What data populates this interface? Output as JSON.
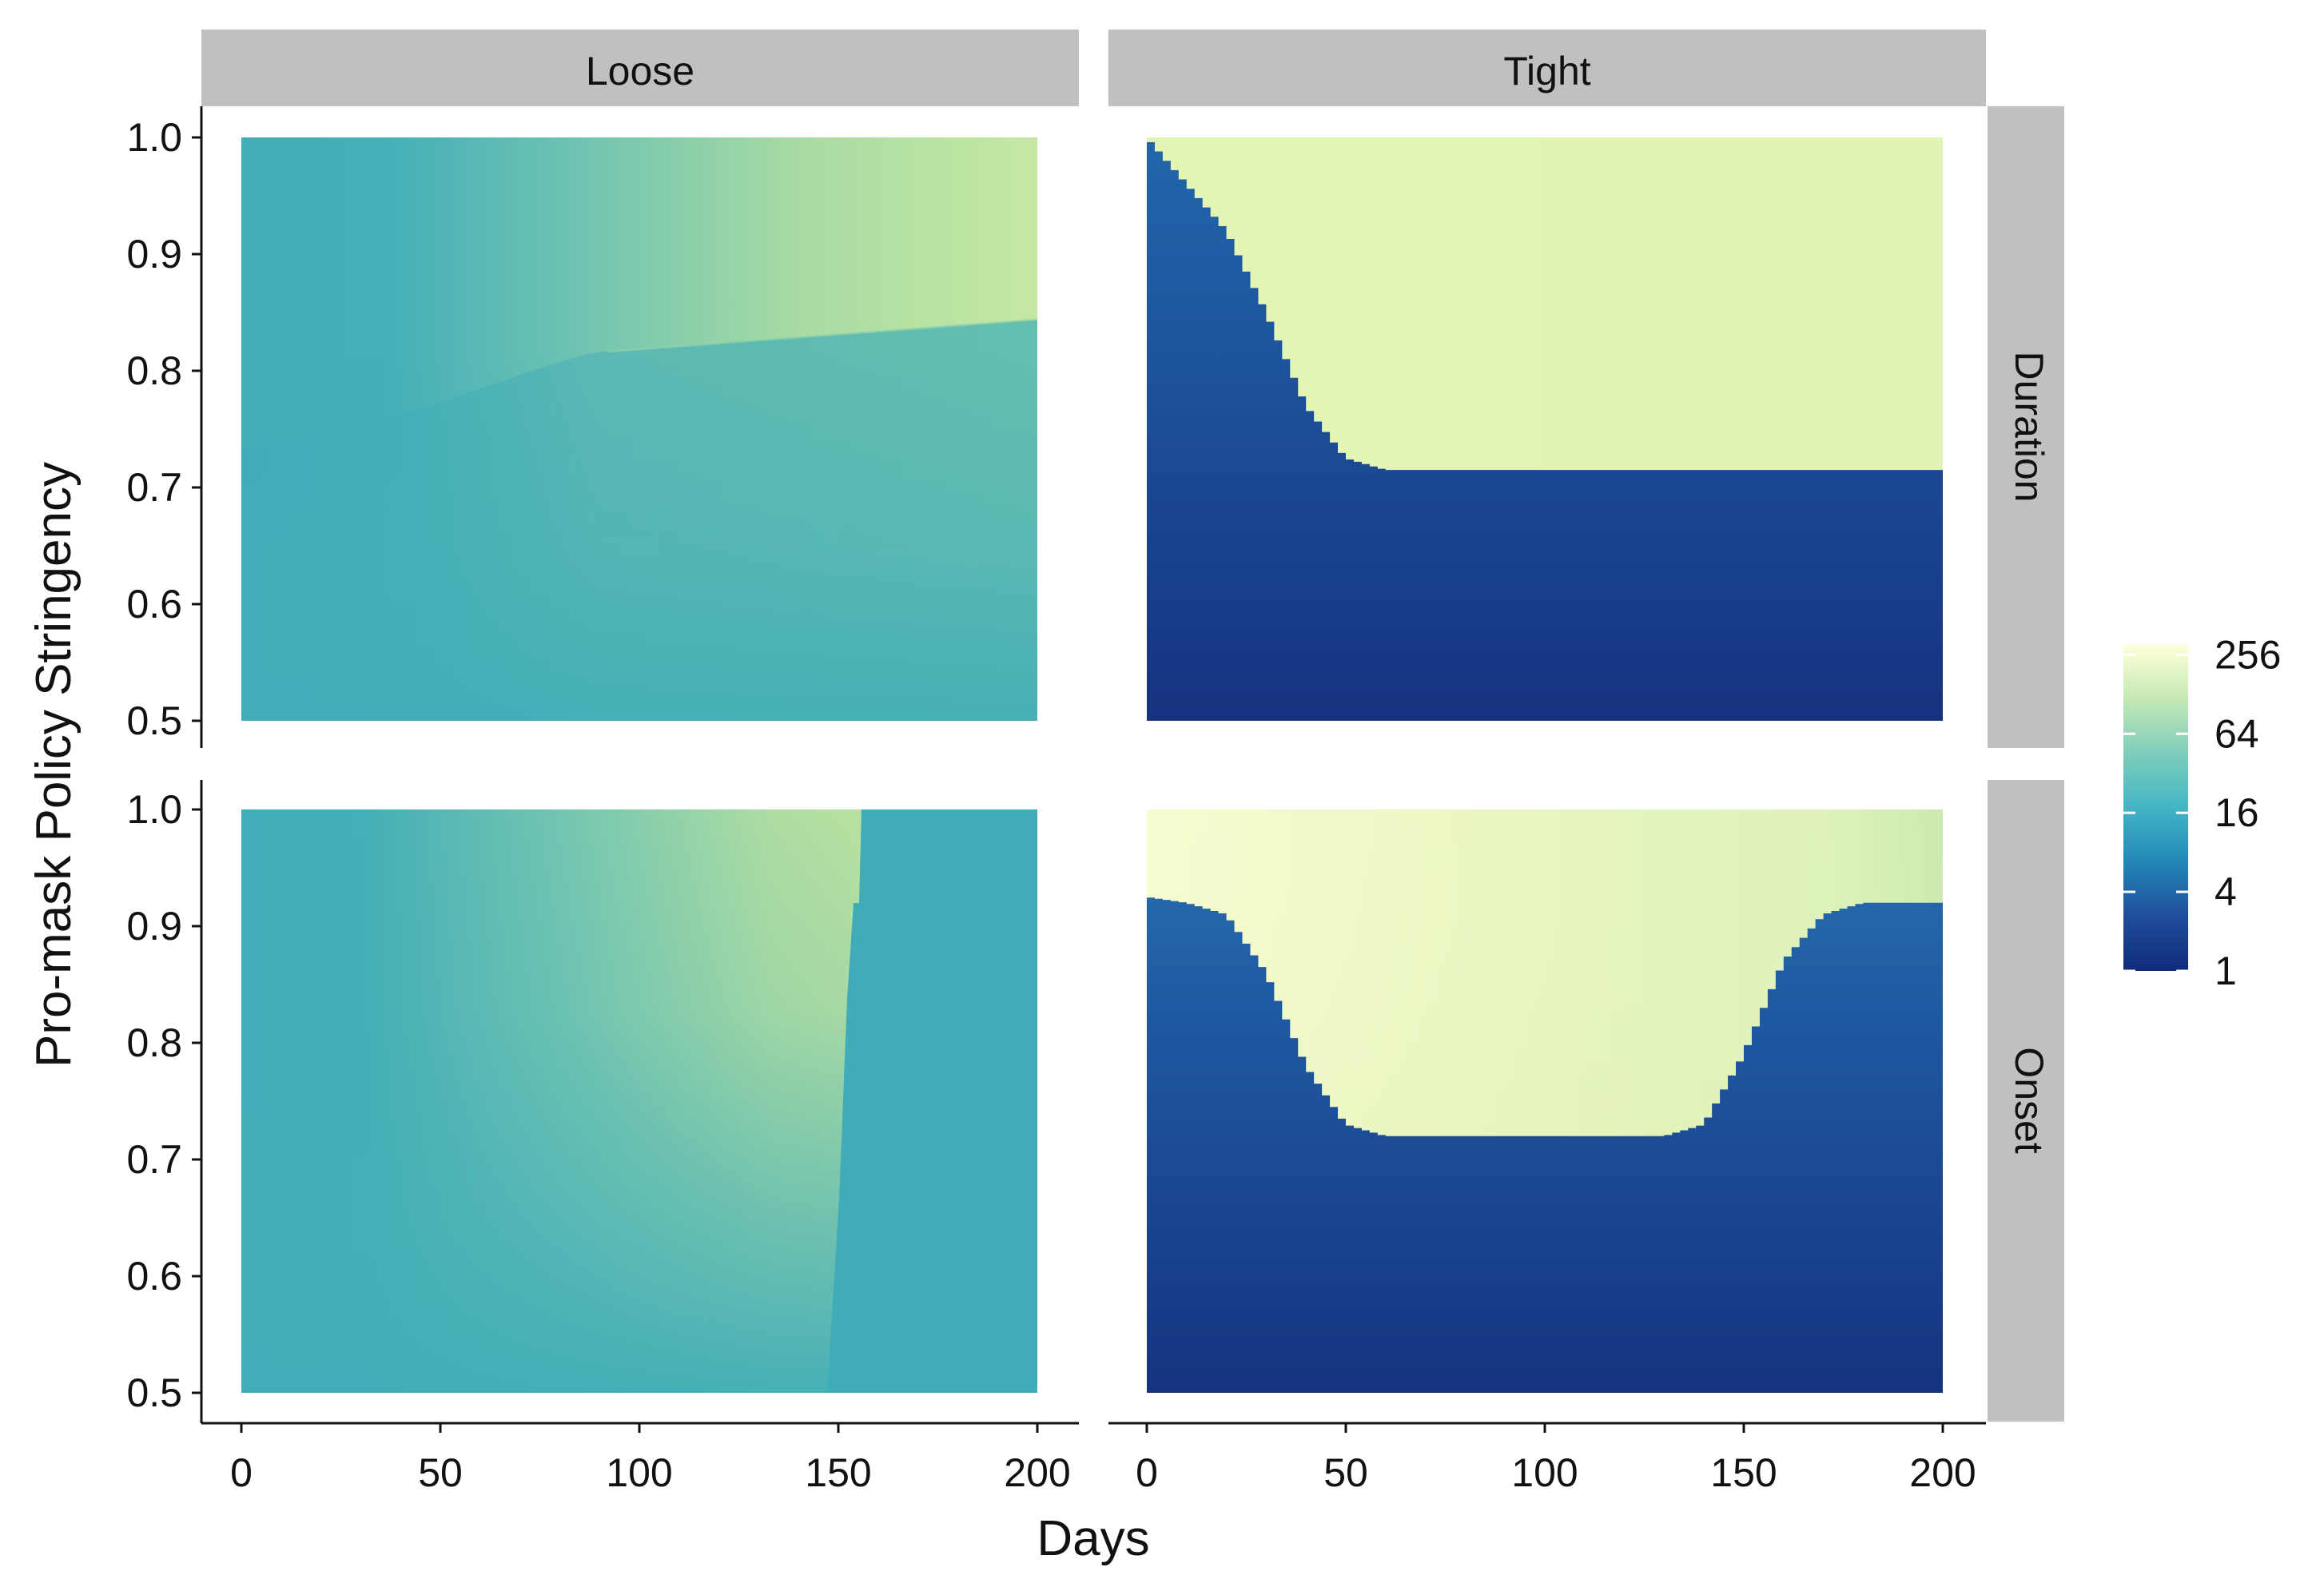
{
  "chart_data": {
    "type": "heatmap",
    "xlabel": "Days",
    "ylabel": "Pro-mask Policy Stringency",
    "xlim": [
      0,
      200
    ],
    "ylim": [
      0.5,
      1.0
    ],
    "x_ticks": [
      "0",
      "50",
      "100",
      "150",
      "200"
    ],
    "y_ticks": [
      "0.5",
      "0.6",
      "0.7",
      "0.8",
      "0.9",
      "1.0"
    ],
    "columns": [
      "Loose",
      "Tight"
    ],
    "rows": [
      "Duration",
      "Onset"
    ],
    "legend": {
      "position": "right",
      "scale": "log2",
      "labels": [
        "1",
        "4",
        "16",
        "64",
        "256"
      ],
      "values": [
        1,
        4,
        16,
        64,
        256
      ],
      "colors": [
        "#112a7c",
        "#2163aa",
        "#2c9bc0",
        "#58bfae",
        "#a7dca3",
        "#eaf6b4",
        "#fefed6"
      ]
    },
    "panels": [
      {
        "column": "Loose",
        "row": "Duration",
        "description_values": {
          "left_edge": 22,
          "upper_band_above": 0.84,
          "upper_right_max": 150,
          "lower_region_max": 42
        }
      },
      {
        "column": "Tight",
        "row": "Duration",
        "boundary_x": [
          0,
          10,
          20,
          30,
          40,
          50,
          60,
          200
        ],
        "boundary_y": [
          1.0,
          0.96,
          0.92,
          0.85,
          0.77,
          0.725,
          0.715,
          0.715
        ],
        "above_value": 180,
        "below_value": 2.5
      },
      {
        "column": "Loose",
        "row": "Onset",
        "step_x": 157,
        "step_x_range": [
          150,
          157
        ],
        "left_max": 100,
        "right_value": 20
      },
      {
        "column": "Tight",
        "row": "Onset",
        "boundary_x": [
          0,
          10,
          20,
          30,
          40,
          50,
          60,
          130,
          140,
          150,
          160,
          170,
          180,
          200
        ],
        "boundary_y": [
          0.925,
          0.92,
          0.91,
          0.86,
          0.78,
          0.73,
          0.72,
          0.72,
          0.73,
          0.79,
          0.87,
          0.91,
          0.92,
          0.92
        ],
        "above_value": 200,
        "below_value": 2.5
      }
    ]
  }
}
